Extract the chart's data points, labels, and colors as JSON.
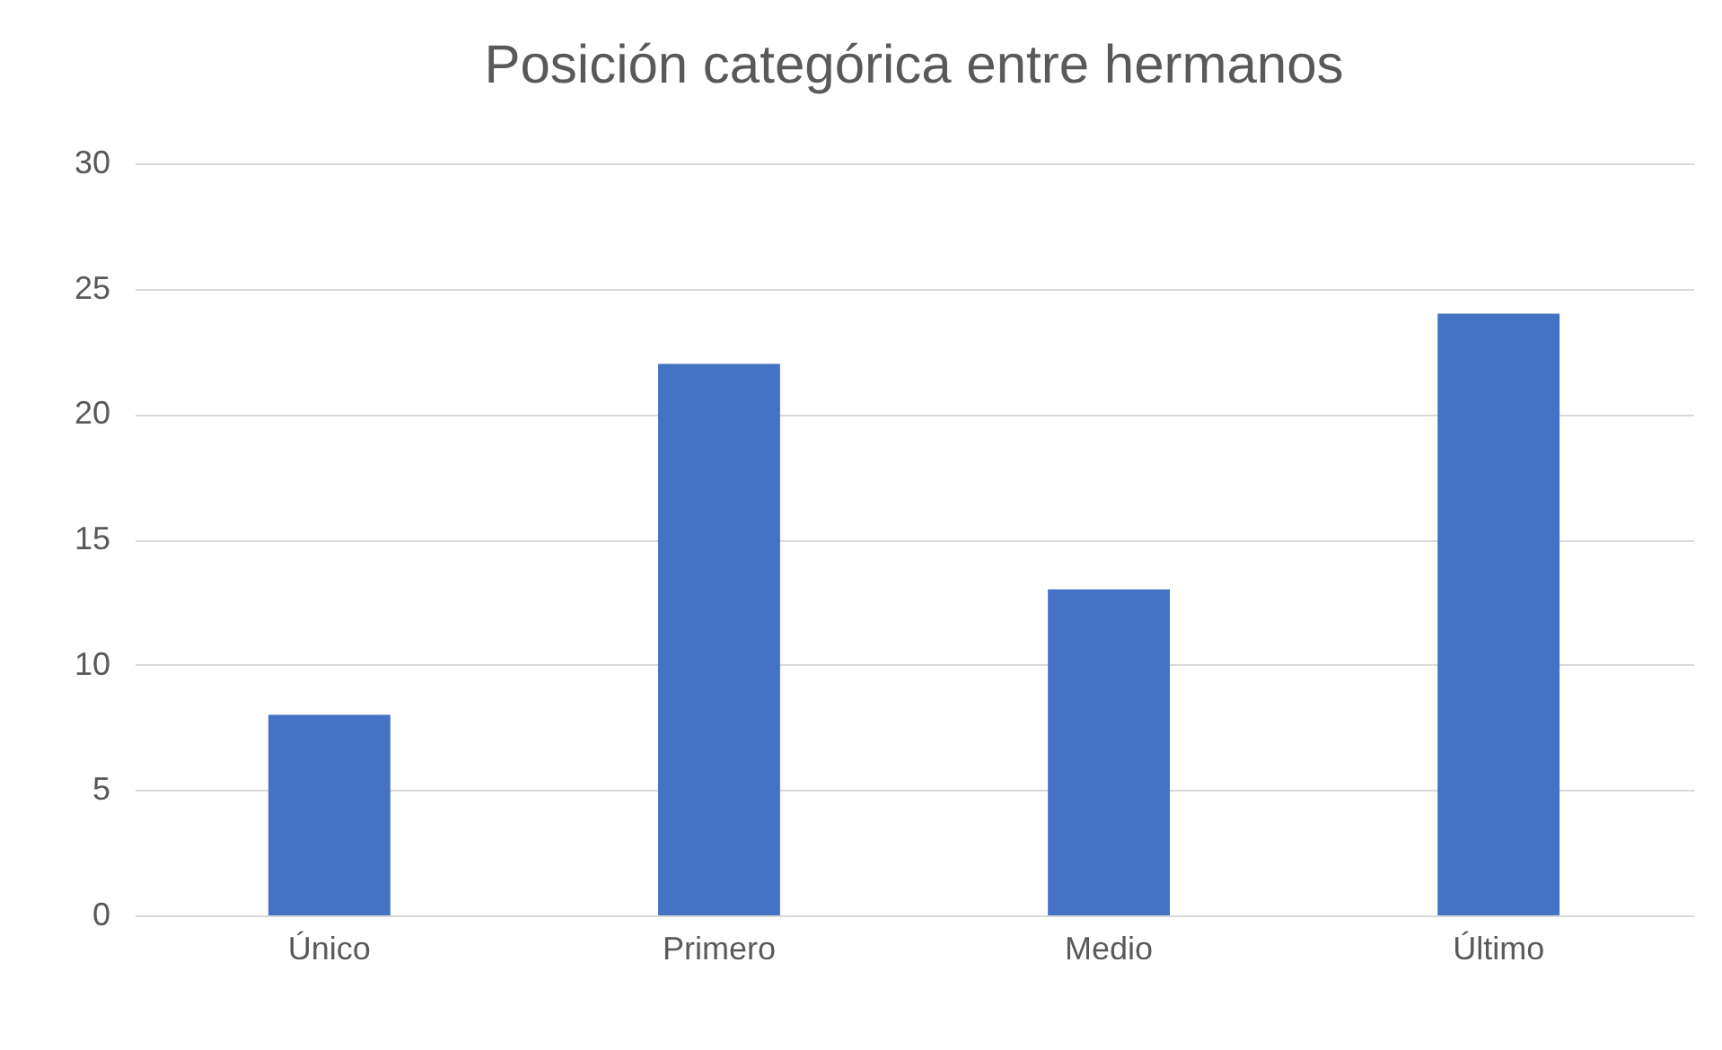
{
  "chart_data": {
    "type": "bar",
    "title": "Posición categórica entre hermanos",
    "categories": [
      "Único",
      "Primero",
      "Medio",
      "Último"
    ],
    "values": [
      8,
      22,
      13,
      24
    ],
    "color": "#4472c4",
    "ylim": [
      0,
      30
    ],
    "yticks": [
      0,
      5,
      10,
      15,
      20,
      25,
      30
    ],
    "grid": "y"
  }
}
